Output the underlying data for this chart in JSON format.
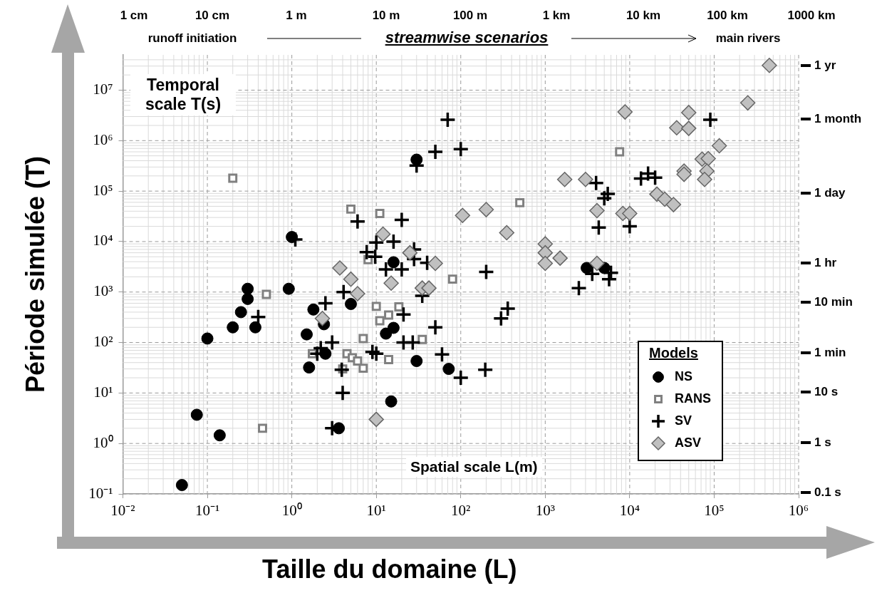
{
  "chart_data": {
    "type": "scatter",
    "xlabel": "Taille du domaine (L)",
    "ylabel": "Période simulée (T)",
    "x2label": "streamwise scenarios",
    "legend_title": "Models",
    "legend": "bottom right",
    "grid": true,
    "log": "xy",
    "annotations": [
      "Temporal scale T(s)",
      "Spatial scale L(m)",
      "runoff initiation",
      "main rivers",
      "1 cm",
      "10 cm",
      "1 m",
      "10 m",
      "100 m",
      "1 km",
      "10 km",
      "100 km",
      "1000 km",
      "1 yr",
      "1 month",
      "1 day",
      "1 hr",
      "10 min",
      "1 min",
      "10 s",
      "1 s",
      "0.1 s"
    ],
    "xlim": [
      0.01,
      1000000
    ],
    "ylim": [
      0.1,
      50000000
    ],
    "xticks": [
      {
        "value": 0.01,
        "label": "10⁻²"
      },
      {
        "value": 0.1,
        "label": "10⁻¹"
      },
      {
        "value": 1,
        "label": "10⁰"
      },
      {
        "value": 10,
        "label": "10¹"
      },
      {
        "value": 100,
        "label": "10²"
      },
      {
        "value": 1000,
        "label": "10³"
      },
      {
        "value": 10000,
        "label": "10⁴"
      },
      {
        "value": 100000,
        "label": "10⁵"
      },
      {
        "value": 1000000,
        "label": "10⁶"
      }
    ],
    "yticks": [
      {
        "value": 0.1,
        "label": "10⁻¹"
      },
      {
        "value": 1,
        "label": "10⁰"
      },
      {
        "value": 10,
        "label": "10¹"
      },
      {
        "value": 100,
        "label": "10²"
      },
      {
        "value": 1000,
        "label": "10³"
      },
      {
        "value": 10000,
        "label": "10⁴"
      },
      {
        "value": 100000,
        "label": "10⁵"
      },
      {
        "value": 1000000,
        "label": "10⁶"
      },
      {
        "value": 10000000,
        "label": "10⁷"
      }
    ],
    "series": [
      {
        "name": "NS",
        "color": "#000000",
        "marker": "circle",
        "x": [
          0.05,
          0.075,
          0.14,
          0.1,
          0.2,
          0.25,
          0.3,
          0.3,
          0.37,
          0.92,
          1.0,
          1.8,
          1.5,
          2.4,
          2.5,
          1.6,
          5,
          3.6,
          16,
          13,
          30,
          72,
          15,
          16,
          30,
          3100,
          5000
        ],
        "values": [
          0.15,
          3.7,
          1.45,
          120,
          200,
          400,
          730,
          1160,
          200,
          1160,
          12300,
          450,
          145,
          230,
          60,
          32,
          580,
          2,
          195,
          150,
          43,
          30,
          6.8,
          3900,
          420000,
          3000,
          3000
        ]
      },
      {
        "name": "RANS",
        "color": "#808080",
        "marker": "square",
        "x": [
          0.2,
          0.5,
          0.45,
          1.75,
          4,
          4.5,
          5.2,
          6,
          7,
          7,
          10,
          11,
          18.5,
          14,
          35,
          14,
          5,
          8,
          11,
          500,
          80,
          7600
        ],
        "values": [
          180000,
          900,
          2,
          60,
          30,
          60,
          50,
          43,
          31,
          120,
          520,
          270,
          510,
          350,
          115,
          46,
          44000,
          4400,
          36000,
          59000,
          1800,
          600000
        ]
      },
      {
        "name": "SV",
        "color": "#000000",
        "marker": "cross",
        "x": [
          1.1,
          6,
          7.7,
          10,
          9.7,
          4.1,
          20,
          16,
          13,
          20,
          28,
          28,
          40,
          30,
          70,
          50,
          100,
          200,
          2500,
          3600,
          6000,
          5700,
          4000,
          5500,
          5000,
          4300,
          10000,
          13600,
          16500,
          20000,
          90000,
          0.4,
          2.5,
          3,
          2.2,
          2,
          3.9,
          4,
          3,
          9,
          10,
          21,
          21,
          27,
          50,
          60,
          100,
          195,
          300,
          360,
          35
        ],
        "values": [
          11000,
          25000,
          6200,
          9600,
          5000,
          1000,
          27000,
          10000,
          2800,
          2800,
          7000,
          4500,
          3800,
          320000,
          2600000,
          600000,
          680000,
          2500,
          1200,
          2300,
          2400,
          1800,
          145000,
          88000,
          72000,
          19000,
          20000,
          178000,
          222000,
          184000,
          2600000,
          320,
          600,
          100,
          77,
          60,
          29,
          10,
          2,
          65,
          60,
          360,
          100,
          100,
          200,
          58,
          20,
          29,
          300,
          470,
          840
        ]
      },
      {
        "name": "ASV",
        "color": "#c0c0c0",
        "marker": "diamond",
        "x": [
          3.7,
          5,
          6,
          2.3,
          10,
          12,
          25,
          15,
          35,
          42,
          50,
          105,
          200,
          350,
          1000,
          1000,
          1000,
          1500,
          1700,
          3000,
          4100,
          8300,
          10000,
          4100,
          8800,
          450000,
          250000,
          50000,
          36000,
          50000,
          115000,
          72000,
          85000,
          44000,
          44000,
          82000,
          77000,
          21000,
          26000,
          33000
        ],
        "values": [
          3000,
          1800,
          930,
          300,
          3,
          14000,
          6000,
          1500,
          1200,
          1200,
          3700,
          33000,
          43000,
          15000,
          9000,
          6000,
          3700,
          4700,
          170000,
          170000,
          41000,
          36000,
          36000,
          3700,
          3700000,
          31000000,
          5600000,
          3600000,
          1800000,
          1750000,
          790000,
          430000,
          440000,
          250000,
          215000,
          250000,
          170000,
          87000,
          69000,
          54000
        ]
      }
    ]
  }
}
